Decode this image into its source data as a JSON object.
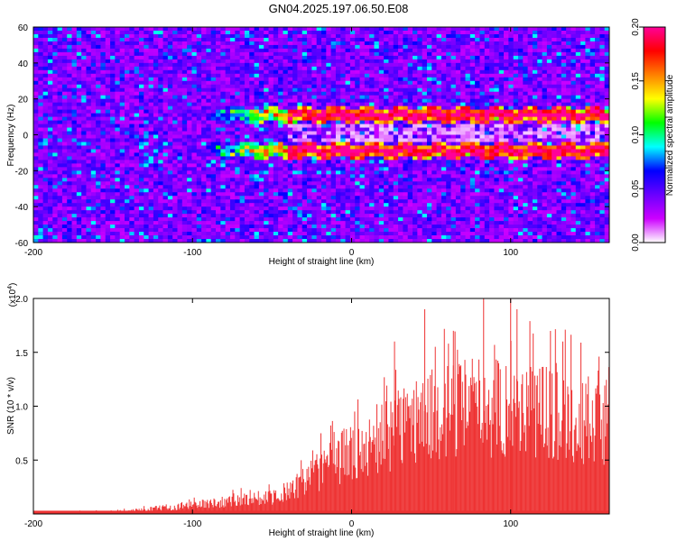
{
  "title": "GN04.2025.197.06.50.E08",
  "chart_data": [
    {
      "type": "heatmap",
      "title": "GN04.2025.197.06.50.E08",
      "xlabel": "Height of straight line (km)",
      "ylabel": "Frequency (Hz)",
      "xlim": [
        -200,
        162
      ],
      "ylim": [
        -60,
        60
      ],
      "xticks": [
        -200,
        -100,
        0,
        100
      ],
      "yticks": [
        -60,
        -40,
        -20,
        0,
        20,
        40,
        60
      ],
      "colorbar": {
        "label": "Normalized spectral amplitude",
        "range": [
          0.0,
          0.2
        ],
        "ticks": [
          "0.00",
          "0.05",
          "0.10",
          "0.15",
          "0.20"
        ],
        "colors": [
          "#ffffff",
          "#cc00ff",
          "#6a00ff",
          "#0000ff",
          "#00ffff",
          "#00ff00",
          "#ffff00",
          "#ff8000",
          "#ff0000",
          "#ff0099"
        ]
      },
      "features": {
        "bands_hz": [
          11,
          -9
        ],
        "band_start_km": -95,
        "strong_band_from_km": -40,
        "band_peak_amplitude": 0.2
      }
    },
    {
      "type": "bar",
      "xlabel": "Height of straight line (km)",
      "ylabel": "SNR (10 * v/v)",
      "y_multiplier": "(x10",
      "y_multiplier_exp": "4",
      "y_multiplier_close": ")",
      "xlim": [
        -200,
        162
      ],
      "ylim": [
        0,
        2.0
      ],
      "xticks": [
        -200,
        -100,
        0,
        100
      ],
      "yticks": [
        0.5,
        1.0,
        1.5,
        2.0
      ],
      "ytick_labels": [
        "0.5",
        "1.0",
        "1.5",
        "2.0"
      ],
      "color": "#ee3333",
      "envelope": {
        "x": [
          -200,
          -150,
          -120,
          -100,
          -80,
          -60,
          -40,
          -30,
          -20,
          -10,
          0,
          10,
          20,
          30,
          40,
          60,
          80,
          100,
          120,
          140,
          162
        ],
        "y": [
          0.02,
          0.03,
          0.08,
          0.12,
          0.17,
          0.22,
          0.27,
          0.45,
          0.6,
          0.75,
          0.85,
          0.9,
          1.05,
          1.2,
          1.3,
          1.4,
          1.5,
          1.45,
          1.45,
          1.35,
          1.2
        ]
      },
      "peaks": [
        {
          "x": 83,
          "y": 2.0
        },
        {
          "x": 100,
          "y": 2.0
        },
        {
          "x": 46,
          "y": 1.9
        },
        {
          "x": 104,
          "y": 1.9
        },
        {
          "x": 27,
          "y": 1.6
        },
        {
          "x": 64,
          "y": 1.7
        }
      ]
    }
  ]
}
